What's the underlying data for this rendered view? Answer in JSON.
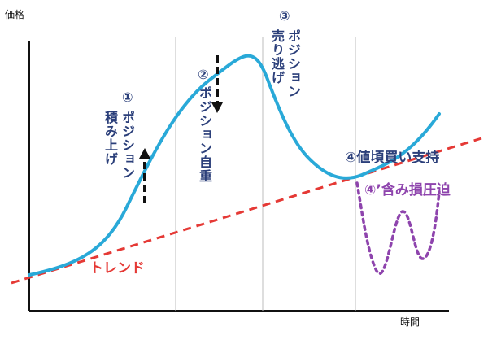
{
  "axes": {
    "y_label": "価格",
    "x_label": "時間"
  },
  "labels": {
    "trend": "トレンド",
    "phase1_num": "①",
    "phase1_col1": "ポジション",
    "phase1_col2": "積み上げ",
    "phase2_num": "②",
    "phase2_col1": "ポジション自重",
    "phase3_num": "③",
    "phase3_col1": "ポジション",
    "phase3_col2": "売り逃げ",
    "phase4": "④値頃買い支持",
    "phase4b": "④’含み損圧迫"
  },
  "colors": {
    "price_line": "#29a9d8",
    "trend_line": "#e53935",
    "loss_path": "#8e44ad",
    "axis": "#111111",
    "divider": "#bdbdbd",
    "label_text": "#2b3f7a"
  },
  "icons": {
    "up_arrow": "dashed-up-arrow-icon",
    "down_arrow": "dashed-down-arrow-icon"
  }
}
